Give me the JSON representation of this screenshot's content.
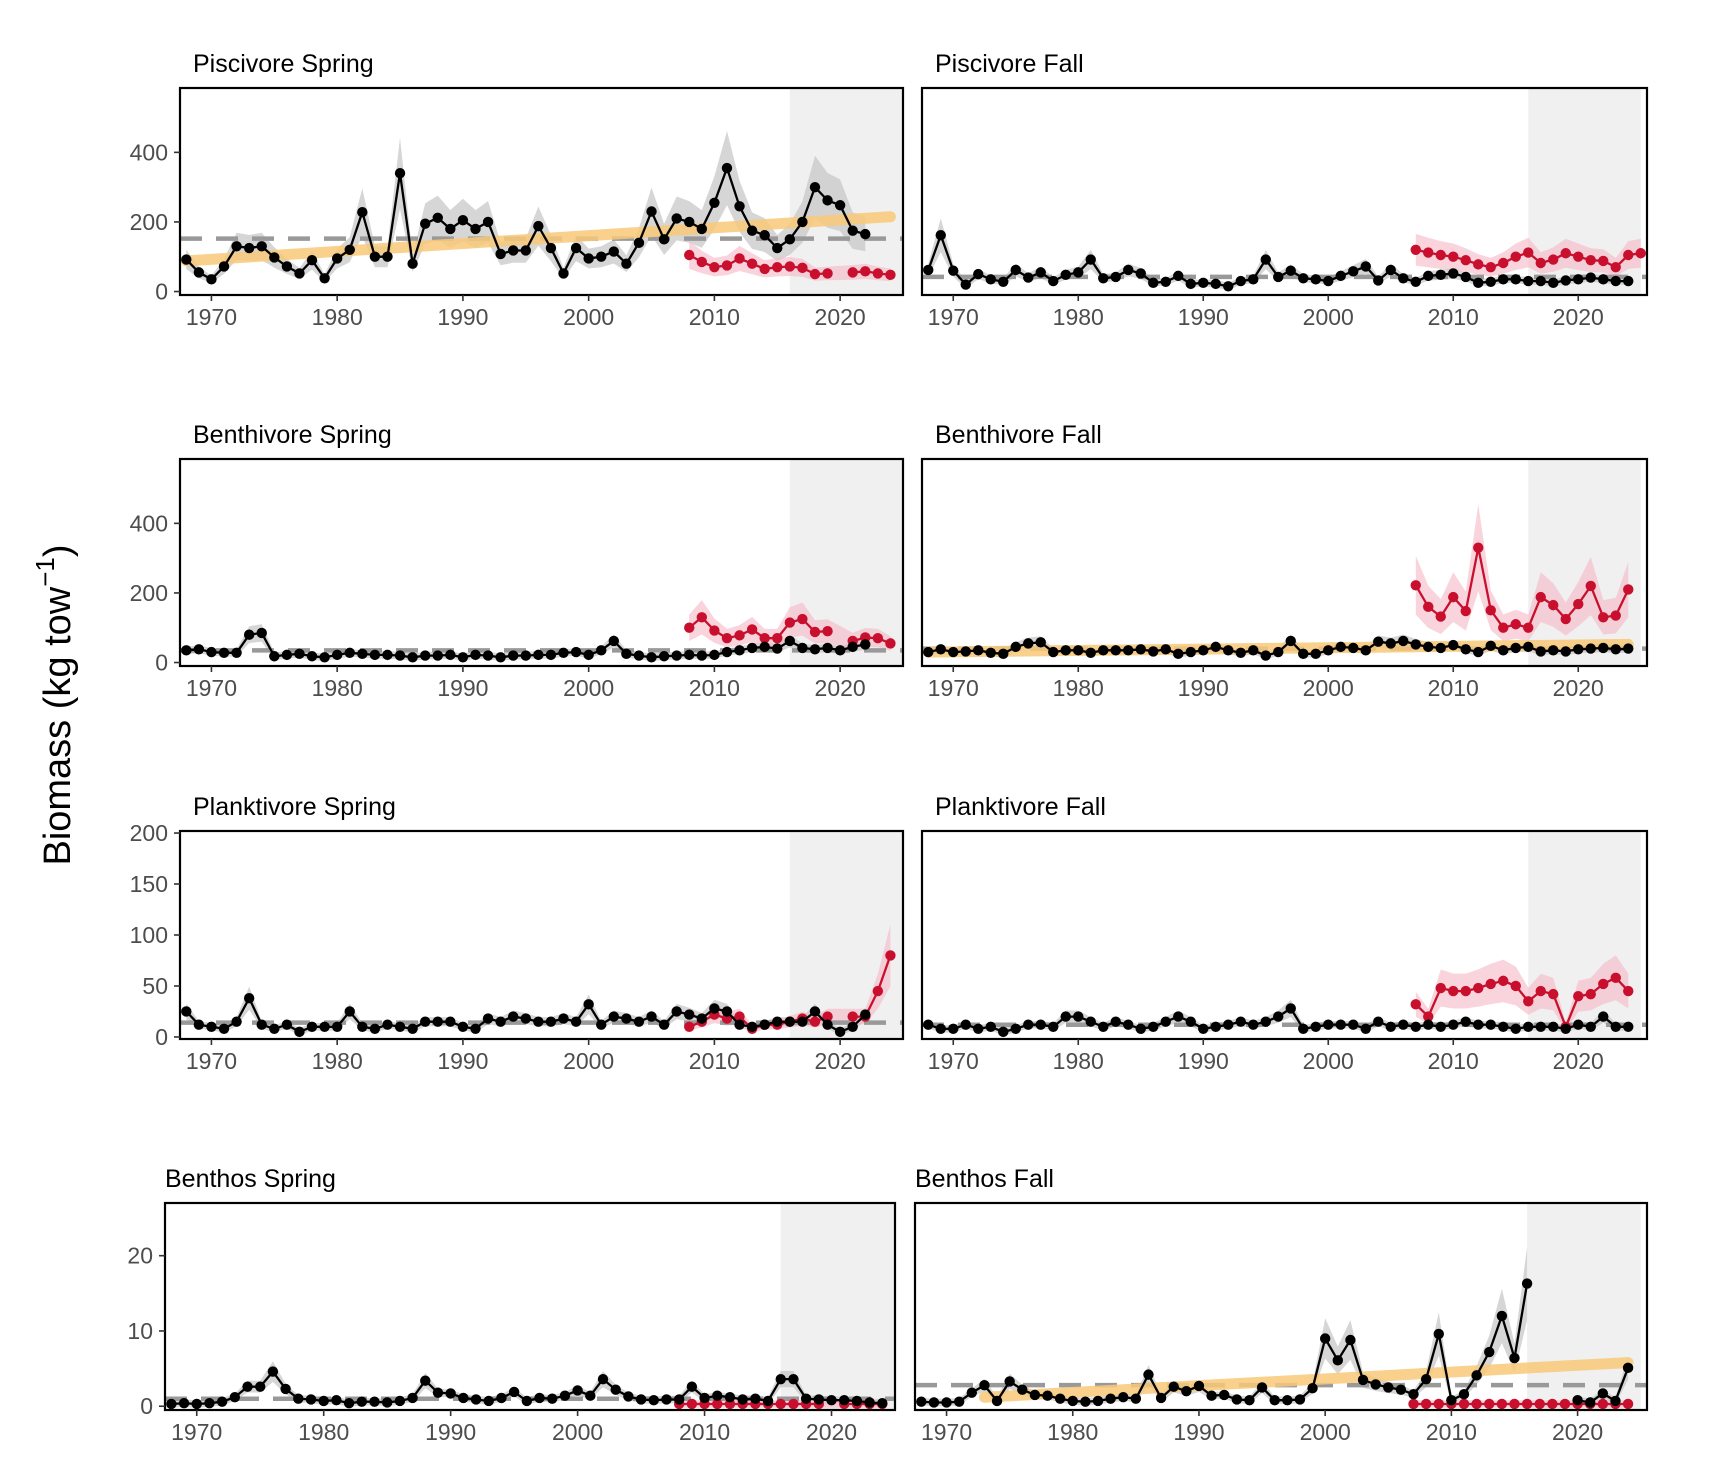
{
  "ylabel": {
    "main": "Biomass (kg tow",
    "sup": "−1",
    "close": ")"
  },
  "colors": {
    "survey": "#000000",
    "survey_band": "#c8c8c8",
    "alt": "#c8102e",
    "alt_band": "#f6b8c6",
    "trend": "#f9c979",
    "mean": "#999999",
    "recent_shade": "#ebebeb"
  },
  "chart_data": [
    {
      "title": "Piscivore Spring",
      "type": "line",
      "season": "spring",
      "xlim": [
        1967.5,
        2025
      ],
      "ylim": [
        -10,
        585
      ],
      "yticks": [
        0,
        200,
        400
      ],
      "xticks": [
        1970,
        1980,
        1990,
        2000,
        2010,
        2020
      ],
      "shade": [
        2016,
        2025
      ],
      "mean": 152,
      "trend": [
        [
          1968,
          88
        ],
        [
          2024,
          215
        ]
      ],
      "series": [
        {
          "role": "survey",
          "start": 1968,
          "values": [
            92,
            55,
            35,
            72,
            130,
            125,
            130,
            98,
            72,
            52,
            90,
            38,
            95,
            120,
            228,
            100,
            100,
            340,
            80,
            195,
            212,
            180,
            205,
            180,
            200,
            108,
            118,
            118,
            188,
            125,
            52,
            125,
            95,
            100,
            115,
            80,
            140,
            230,
            150,
            210,
            200,
            180,
            255,
            355,
            245,
            175,
            162,
            125,
            150,
            200,
            300,
            262,
            248,
            175,
            165
          ]
        },
        {
          "role": "alt",
          "start": 2008,
          "values": [
            105,
            85,
            70,
            75,
            95,
            80,
            65,
            70,
            72,
            68,
            50,
            52,
            null,
            55,
            58,
            52,
            48
          ]
        }
      ]
    },
    {
      "title": "Piscivore Fall",
      "type": "line",
      "season": "fall",
      "xlim": [
        1967.5,
        2025.5
      ],
      "ylim": [
        -10,
        585
      ],
      "yticks": [],
      "xticks": [
        1970,
        1980,
        1990,
        2000,
        2010,
        2020
      ],
      "shade": [
        2016,
        2025
      ],
      "mean": 42,
      "trend": null,
      "series": [
        {
          "role": "survey",
          "start": 1968,
          "values": [
            62,
            162,
            60,
            20,
            50,
            35,
            28,
            62,
            40,
            55,
            30,
            48,
            55,
            92,
            38,
            42,
            62,
            52,
            25,
            28,
            45,
            22,
            25,
            22,
            15,
            30,
            35,
            92,
            42,
            60,
            38,
            35,
            30,
            45,
            58,
            72,
            32,
            62,
            38,
            28,
            45,
            48,
            52,
            42,
            25,
            28,
            35,
            35,
            30,
            30,
            25,
            32,
            35,
            40,
            35,
            30,
            30
          ]
        },
        {
          "role": "alt",
          "start": 2007,
          "values": [
            120,
            112,
            105,
            100,
            90,
            78,
            70,
            82,
            100,
            112,
            82,
            92,
            110,
            100,
            90,
            88,
            70,
            105,
            110
          ]
        }
      ]
    },
    {
      "title": "Benthivore Spring",
      "type": "line",
      "season": "spring",
      "xlim": [
        1967.5,
        2025
      ],
      "ylim": [
        -10,
        585
      ],
      "yticks": [
        0,
        200,
        400
      ],
      "xticks": [
        1970,
        1980,
        1990,
        2000,
        2010,
        2020
      ],
      "shade": [
        2016,
        2025
      ],
      "mean": 35,
      "trend": null,
      "series": [
        {
          "role": "survey",
          "start": 1968,
          "values": [
            35,
            38,
            30,
            28,
            28,
            80,
            85,
            18,
            22,
            25,
            18,
            15,
            22,
            28,
            25,
            22,
            22,
            20,
            15,
            20,
            20,
            22,
            15,
            22,
            20,
            15,
            20,
            20,
            22,
            22,
            28,
            30,
            22,
            35,
            62,
            25,
            20,
            15,
            18,
            20,
            22,
            20,
            22,
            30,
            35,
            42,
            45,
            40,
            62,
            42,
            38,
            42,
            35,
            45,
            52
          ]
        },
        {
          "role": "alt",
          "start": 2008,
          "values": [
            100,
            130,
            92,
            70,
            78,
            95,
            70,
            70,
            115,
            125,
            88,
            90,
            null,
            62,
            72,
            70,
            55
          ]
        }
      ]
    },
    {
      "title": "Benthivore Fall",
      "type": "line",
      "season": "fall",
      "xlim": [
        1967.5,
        2025.5
      ],
      "ylim": [
        -10,
        585
      ],
      "yticks": [],
      "xticks": [
        1970,
        1980,
        1990,
        2000,
        2010,
        2020
      ],
      "shade": [
        2016,
        2025
      ],
      "mean": 40,
      "trend": [
        [
          1968,
          30
        ],
        [
          2024,
          52
        ]
      ],
      "series": [
        {
          "role": "survey",
          "start": 1968,
          "values": [
            30,
            38,
            30,
            32,
            35,
            28,
            25,
            45,
            55,
            58,
            30,
            35,
            35,
            28,
            35,
            35,
            35,
            38,
            32,
            38,
            25,
            30,
            35,
            45,
            35,
            28,
            35,
            20,
            30,
            62,
            25,
            25,
            35,
            45,
            42,
            35,
            60,
            55,
            62,
            52,
            45,
            42,
            50,
            38,
            30,
            48,
            35,
            42,
            45,
            32,
            35,
            32,
            38,
            40,
            42,
            38,
            40
          ]
        },
        {
          "role": "alt",
          "start": 2007,
          "values": [
            222,
            160,
            132,
            188,
            148,
            330,
            150,
            100,
            110,
            100,
            188,
            165,
            125,
            168,
            220,
            130,
            135,
            210
          ]
        }
      ]
    },
    {
      "title": "Planktivore Spring",
      "type": "line",
      "season": "spring",
      "xlim": [
        1967.5,
        2025
      ],
      "ylim": [
        -2,
        202
      ],
      "yticks": [
        0,
        50,
        100,
        150,
        200
      ],
      "xticks": [
        1970,
        1980,
        1990,
        2000,
        2010,
        2020
      ],
      "shade": [
        2016,
        2025
      ],
      "mean": 14,
      "trend": null,
      "series": [
        {
          "role": "survey",
          "start": 1968,
          "values": [
            25,
            12,
            10,
            8,
            15,
            38,
            12,
            8,
            12,
            5,
            10,
            10,
            10,
            25,
            10,
            8,
            12,
            10,
            8,
            15,
            15,
            15,
            10,
            8,
            18,
            15,
            20,
            18,
            15,
            15,
            18,
            15,
            32,
            12,
            20,
            18,
            15,
            20,
            12,
            25,
            22,
            18,
            28,
            25,
            12,
            10,
            12,
            15,
            15,
            15,
            25,
            12,
            5,
            10,
            22
          ]
        },
        {
          "role": "alt",
          "start": 2008,
          "values": [
            10,
            15,
            22,
            18,
            20,
            8,
            12,
            12,
            15,
            18,
            15,
            20,
            null,
            20,
            20,
            45,
            80
          ]
        }
      ]
    },
    {
      "title": "Planktivore Fall",
      "type": "line",
      "season": "fall",
      "xlim": [
        1967.5,
        2025.5
      ],
      "ylim": [
        -2,
        202
      ],
      "yticks": [],
      "xticks": [
        1970,
        1980,
        1990,
        2000,
        2010,
        2020
      ],
      "shade": [
        2016,
        2025
      ],
      "mean": 12,
      "trend": null,
      "series": [
        {
          "role": "survey",
          "start": 1968,
          "values": [
            12,
            8,
            8,
            12,
            8,
            10,
            5,
            8,
            12,
            12,
            10,
            20,
            20,
            15,
            10,
            15,
            12,
            8,
            10,
            15,
            20,
            15,
            8,
            10,
            12,
            15,
            12,
            15,
            20,
            28,
            8,
            10,
            12,
            12,
            12,
            8,
            15,
            10,
            12,
            10,
            12,
            10,
            12,
            15,
            12,
            12,
            10,
            8,
            10,
            10,
            10,
            8,
            12,
            10,
            20,
            10,
            10
          ]
        },
        {
          "role": "alt",
          "start": 2007,
          "values": [
            32,
            20,
            48,
            45,
            45,
            48,
            52,
            55,
            50,
            35,
            45,
            42,
            10,
            40,
            42,
            52,
            58,
            45
          ]
        }
      ]
    },
    {
      "title": "Benthos Spring",
      "type": "line",
      "season": "spring",
      "xlim": [
        1967.5,
        2025
      ],
      "ylim": [
        -0.5,
        27
      ],
      "yticks": [
        0,
        10,
        20
      ],
      "xticks": [
        1970,
        1980,
        1990,
        2000,
        2010,
        2020
      ],
      "shade": [
        2016,
        2025
      ],
      "mean": 1.0,
      "trend": null,
      "series": [
        {
          "role": "survey",
          "start": 1968,
          "values": [
            0.3,
            0.4,
            0.3,
            0.4,
            0.6,
            1.2,
            2.6,
            2.6,
            4.6,
            2.3,
            1.0,
            0.9,
            0.7,
            0.8,
            0.4,
            0.6,
            0.6,
            0.5,
            0.7,
            1.1,
            3.4,
            1.8,
            1.7,
            1.1,
            0.9,
            0.7,
            1.1,
            1.9,
            0.7,
            1.1,
            1.0,
            1.4,
            2.1,
            1.4,
            3.6,
            2.2,
            1.3,
            0.9,
            0.8,
            0.9,
            0.9,
            2.6,
            1.1,
            1.4,
            1.2,
            0.9,
            1.0,
            0.7,
            3.6,
            3.6,
            1.0,
            0.9,
            0.8,
            0.8,
            0.7,
            0.5,
            0.4
          ]
        },
        {
          "role": "alt",
          "start": 2008,
          "values": [
            0.3,
            0.3,
            0.3,
            0.3,
            0.3,
            0.3,
            0.3,
            0.3,
            0.3,
            0.3,
            0.3,
            0.3,
            null,
            0.3,
            0.3,
            0.3,
            0.3
          ]
        }
      ]
    },
    {
      "title": "Benthos Fall",
      "type": "line",
      "season": "fall",
      "xlim": [
        1967.5,
        2025.5
      ],
      "ylim": [
        -0.5,
        27
      ],
      "yticks": [],
      "xticks": [
        1970,
        1980,
        1990,
        2000,
        2010,
        2020
      ],
      "shade": [
        2016,
        2025
      ],
      "mean": 2.8,
      "trend": [
        [
          1973,
          1.2
        ],
        [
          2024,
          5.8
        ]
      ],
      "series": [
        {
          "role": "survey",
          "start": 1968,
          "values": [
            0.6,
            0.5,
            0.5,
            0.6,
            1.8,
            2.8,
            0.7,
            3.3,
            2.2,
            1.5,
            1.4,
            1.0,
            0.7,
            0.6,
            0.7,
            1.0,
            1.2,
            1.0,
            4.2,
            1.1,
            2.6,
            2.0,
            2.7,
            1.4,
            1.5,
            0.9,
            0.8,
            2.5,
            0.8,
            0.8,
            0.9,
            2.4,
            9.0,
            6.1,
            8.8,
            3.5,
            2.9,
            2.5,
            2.2,
            1.6,
            3.6,
            9.6,
            0.8,
            1.6,
            4.1,
            7.2,
            12.0,
            6.4,
            16.3
          ]
        },
        {
          "role": "survey",
          "start": 2020,
          "values": [
            0.8,
            0.5,
            1.7,
            0.7,
            5.1
          ]
        },
        {
          "role": "alt",
          "start": 2007,
          "values": [
            0.3,
            0.3,
            0.3,
            0.3,
            0.3,
            0.3,
            0.3,
            0.3,
            0.3,
            0.3,
            0.3,
            0.3,
            0.3,
            0.3,
            0.3,
            0.3,
            0.3,
            0.3
          ]
        }
      ]
    }
  ]
}
